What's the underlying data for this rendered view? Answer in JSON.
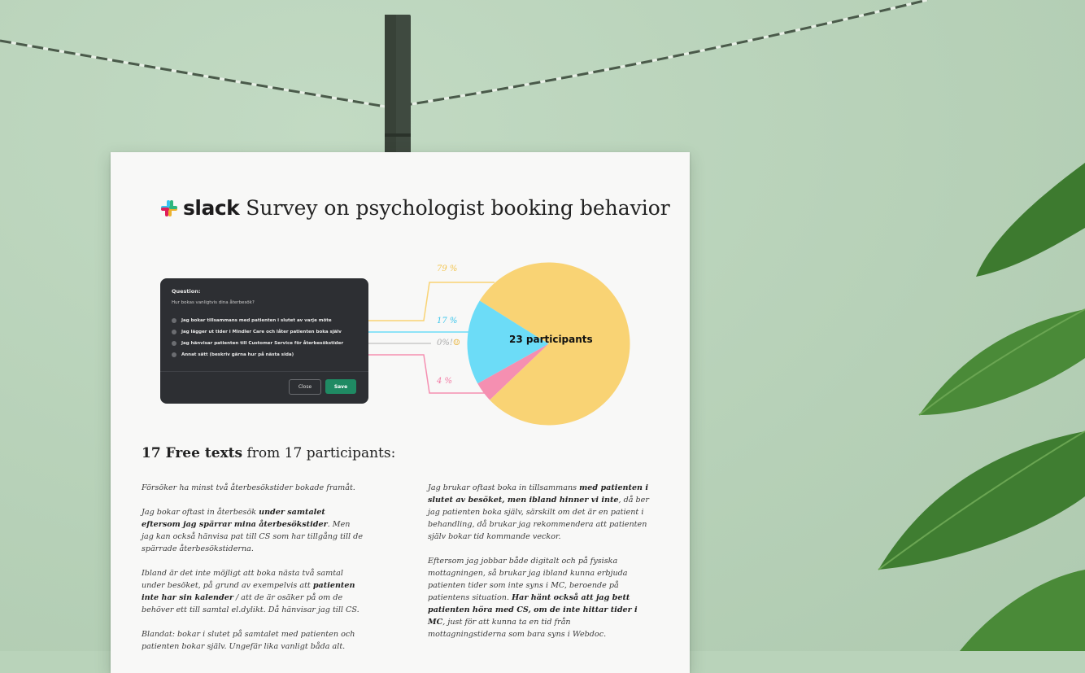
{
  "document": {
    "logo_text": "slack",
    "title": "Survey on psychologist booking behavior"
  },
  "dialog": {
    "label": "Question:",
    "question": "Hur bokas vanligtvis dina återbesök?",
    "options": [
      "Jag bokar tillsammans med patienten i slutet av varje möte",
      "Jag lägger ut tider i Mindler Care och låter patienten boka själv",
      "Jag hänvisar patienten till Customer Service för återbesökstider",
      "Annat sätt (beskriv gärna hur på nästa sida)"
    ],
    "close_label": "Close",
    "save_label": "Save"
  },
  "chart_data": {
    "type": "pie",
    "center_label": "23 participants",
    "slice_labels": [
      "79 %",
      "17 %",
      "0%!",
      "4 %"
    ],
    "values": [
      79,
      17,
      0,
      4
    ],
    "colors": [
      "#f9d374",
      "#6cdcf7",
      "#c9c9c9",
      "#f58fb1"
    ]
  },
  "free_texts": {
    "heading_bold": "17 Free texts",
    "heading_rest": " from 17 participants:",
    "left": [
      {
        "parts": [
          {
            "t": "Försöker ha minst två återbesökstider bokade framåt."
          }
        ]
      },
      {
        "parts": [
          {
            "t": "Jag bokar oftast in återbesök "
          },
          {
            "t": "under samtalet eftersom jag spärrar mina återbesökstider",
            "b": true
          },
          {
            "t": ". Men jag kan också hänvisa pat till CS som har tillgång till de spärrade återbesökstiderna."
          }
        ]
      },
      {
        "parts": [
          {
            "t": "Ibland är det inte möjligt att boka nästa två samtal under besöket, på grund av exempelvis att "
          },
          {
            "t": "patienten inte har sin kalender",
            "b": true
          },
          {
            "t": " / att de är osäker på om de behöver ett till samtal el.dylikt. Då hänvisar jag till CS."
          }
        ]
      },
      {
        "parts": [
          {
            "t": "Blandat: bokar i slutet på samtalet med patienten och patienten bokar själv. Ungefär lika vanligt båda alt."
          }
        ]
      }
    ],
    "right": [
      {
        "parts": [
          {
            "t": "Jag brukar oftast boka in tillsammans "
          },
          {
            "t": "med patienten i slutet av besöket, men ibland hinner vi inte",
            "b": true
          },
          {
            "t": ", då ber jag patienten boka själv, särskilt om det är en patient i behandling, då brukar jag rekommendera att patienten själv bokar tid kommande veckor."
          }
        ]
      },
      {
        "parts": [
          {
            "t": "Eftersom jag jobbar både digitalt och på fysiska mottagningen, så brukar jag ibland kunna erbjuda patienten tider som inte syns i MC, beroende på patientens situation. "
          },
          {
            "t": "Har hänt också att jag bett patienten höra med CS, om de inte hittar tider i MC",
            "b": true
          },
          {
            "t": ", just för att kunna ta en tid från mottagningstiderna som bara syns i Webdoc."
          }
        ]
      }
    ]
  }
}
